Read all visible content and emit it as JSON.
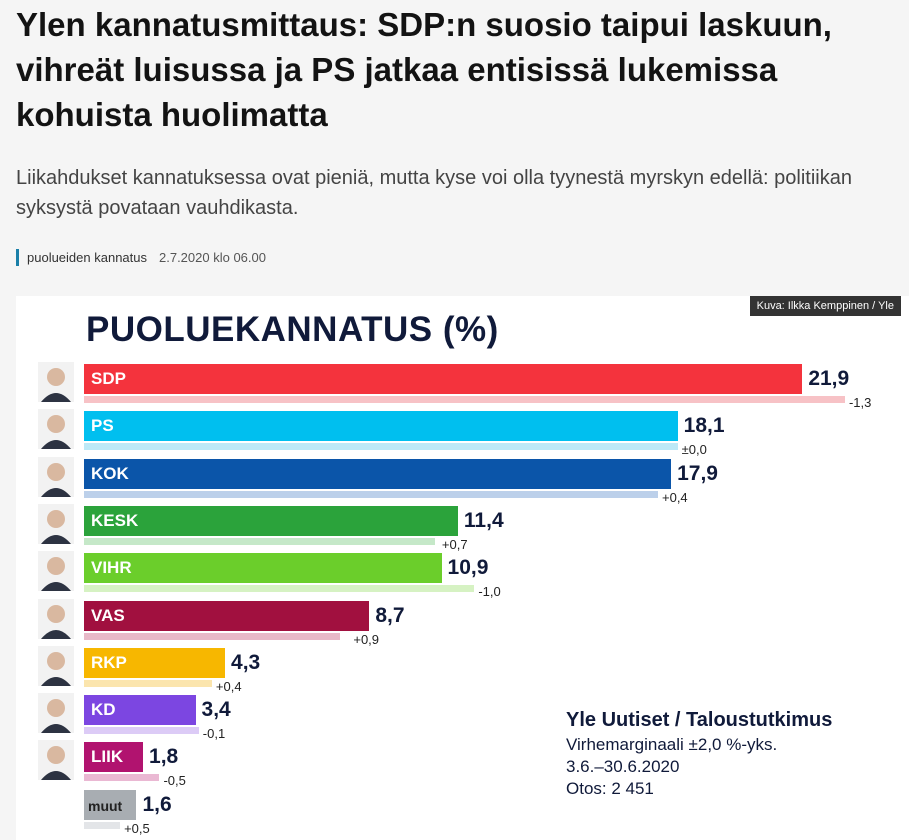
{
  "article": {
    "title": "Ylen kannatusmittaus: SDP:n suosio taipui laskuun, vihreät luisussa ja PS jatkaa entisissä lukemissa kohuista huolimatta",
    "lead": "Liikahdukset kannatuksessa ovat pieniä, mutta kyse voi olla tyynestä myrskyn edellä: politiikan syksystä povataan vauhdikasta.",
    "category": "puolueiden kannatus",
    "date": "2.7.2020 klo 06.00"
  },
  "image": {
    "credit": "Kuva: Ilkka Kemppinen / Yle",
    "source": "Yle Uutiset / Taloustutkimus",
    "margin": "Virhemarginaali ±2,0 %-yks.",
    "period": "3.6.–30.6.2020",
    "sample": "Otos: 2 451"
  },
  "chart_data": {
    "type": "bar",
    "title": "PUOLUEKANNATUS (%)",
    "categories": [
      "SDP",
      "PS",
      "KOK",
      "KESK",
      "VIHR",
      "VAS",
      "RKP",
      "KD",
      "LIIK",
      "muut"
    ],
    "values": [
      21.9,
      18.1,
      17.9,
      11.4,
      10.9,
      8.7,
      4.3,
      3.4,
      1.8,
      1.6
    ],
    "value_labels": [
      "21,9",
      "18,1",
      "17,9",
      "11,4",
      "10,9",
      "8,7",
      "4,3",
      "3,4",
      "1,8",
      "1,6"
    ],
    "changes": [
      -1.3,
      0.0,
      0.4,
      0.7,
      -1.0,
      0.9,
      0.4,
      -0.1,
      -0.5,
      0.5
    ],
    "change_labels": [
      "-1,3",
      "±0,0",
      "+0,4",
      "+0,7",
      "-1,0",
      "+0,9",
      "+0,4",
      "-0,1",
      "-0,5",
      "+0,5"
    ],
    "colors": [
      "#f4333d",
      "#00bfef",
      "#0b55a9",
      "#2ba33b",
      "#6bce2b",
      "#a1103f",
      "#f7b700",
      "#7c46e1",
      "#b1136f",
      "#a8adb2"
    ],
    "prev_colors": [
      "#f7c2c6",
      "#bde9f7",
      "#bcd0ea",
      "#c5e8c8",
      "#d6f2c3",
      "#e8b9c8",
      "#fbe5ad",
      "#dccbf6",
      "#eab8d3",
      "#e3e5e8"
    ],
    "has_avatar": [
      true,
      true,
      true,
      true,
      true,
      true,
      true,
      true,
      true,
      false
    ],
    "xlim": [
      0,
      22
    ]
  }
}
